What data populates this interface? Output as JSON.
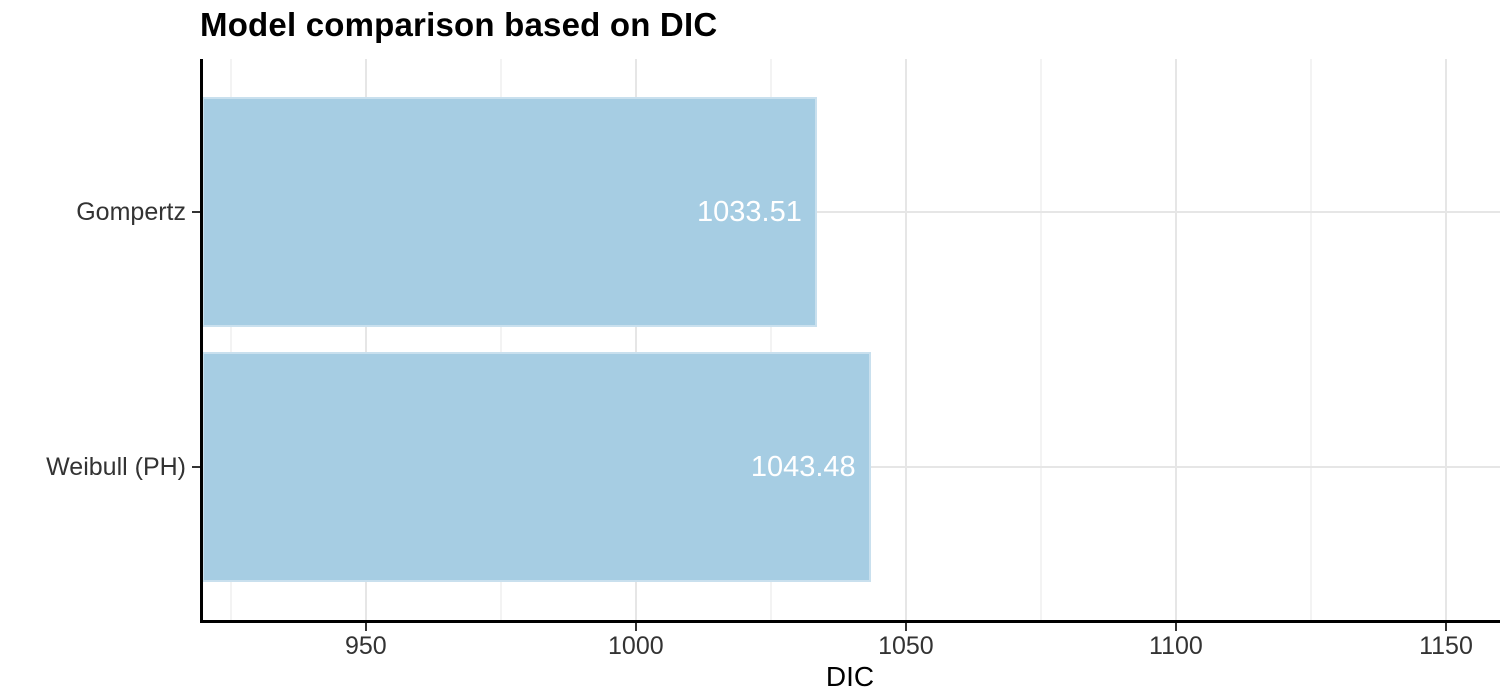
{
  "title": "Model comparison based on DIC",
  "chart_data": {
    "type": "bar",
    "orientation": "horizontal",
    "title": "Model comparison based on DIC",
    "xlabel": "DIC",
    "ylabel": "",
    "categories": [
      "Gompertz",
      "Weibull (PH)"
    ],
    "values": [
      1033.51,
      1043.48
    ],
    "bar_labels": [
      "1033.51",
      "1043.48"
    ],
    "xlim": [
      919.3,
      1160
    ],
    "x_ticks": [
      950,
      1000,
      1050,
      1100,
      1150
    ],
    "x_minor_ticks": [
      925,
      975,
      1025,
      1075,
      1125
    ],
    "grid": "major and minor vertical, major horizontal at category centers",
    "legend": "none",
    "colors": {
      "bar_fill": "#a6cde3",
      "bar_border": "#c9e0ee",
      "bar_label": "#ffffff",
      "grid_major": "#e6e6e6",
      "grid_minor": "#f3f3f3",
      "axis_line": "#000000",
      "tick_text": "#333333",
      "background": "#ffffff"
    }
  }
}
